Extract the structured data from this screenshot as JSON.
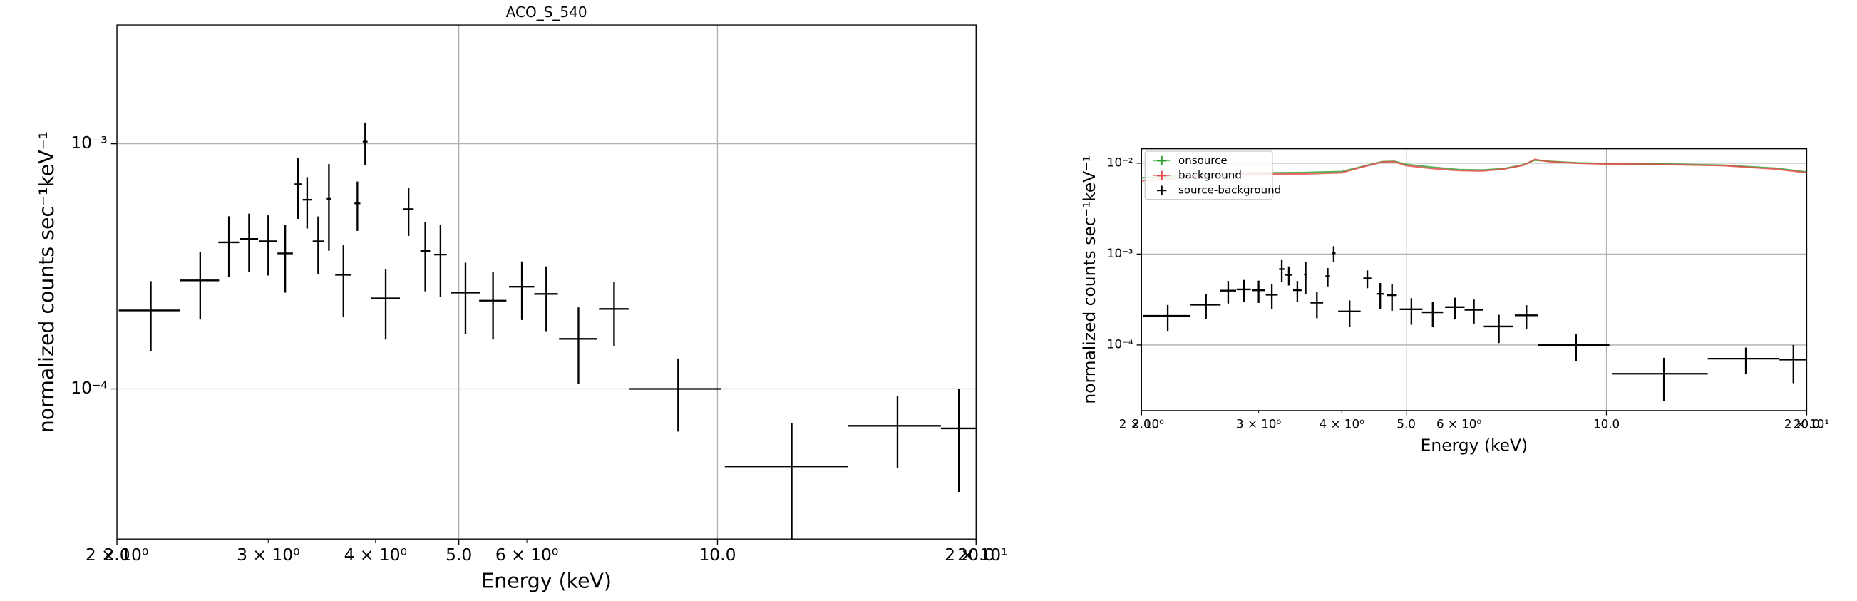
{
  "chart_data": [
    {
      "type": "errorbar",
      "title": "ACO_S_540",
      "x_label": "Energy (keV)",
      "y_label": "normalized counts sec⁻¹keV⁻¹",
      "xscale": "log",
      "yscale": "log",
      "grid": true,
      "xlim": [
        2,
        20
      ],
      "ylim": [
        2.44e-05,
        0.00305
      ],
      "xticks": [
        {
          "value": 2,
          "label": "2.0"
        },
        {
          "value": 5,
          "label": "5.0"
        },
        {
          "value": 10,
          "label": "10.0"
        },
        {
          "value": 20,
          "label": "20.0"
        }
      ],
      "xminorticks": [
        {
          "value": 2,
          "label": "2 × 10⁰"
        },
        {
          "value": 3,
          "label": "3 × 10⁰"
        },
        {
          "value": 4,
          "label": "4 × 10⁰"
        },
        {
          "value": 6,
          "label": "6 × 10⁰"
        },
        {
          "value": 20,
          "label": "2 × 10¹"
        }
      ],
      "yticks": [
        {
          "value": 0.001,
          "label": "10⁻³"
        },
        {
          "value": 0.0001,
          "label": "10⁻⁴"
        }
      ],
      "series": [
        {
          "mark": "errorbar",
          "color": "#000000",
          "x": [
            2.19,
            2.5,
            2.7,
            2.85,
            3.0,
            3.14,
            3.25,
            3.33,
            3.43,
            3.53,
            3.67,
            3.81,
            3.89,
            4.11,
            4.37,
            4.57,
            4.76,
            5.09,
            5.48,
            5.92,
            6.32,
            6.89,
            7.58,
            9.0,
            12.2,
            16.2,
            19.1
          ],
          "xerr": [
            0.18,
            0.13,
            0.075,
            0.07,
            0.07,
            0.065,
            0.03,
            0.04,
            0.05,
            0.02,
            0.08,
            0.03,
            0.025,
            0.16,
            0.06,
            0.06,
            0.08,
            0.2,
            0.2,
            0.2,
            0.2,
            0.35,
            0.3,
            1.1,
            2.0,
            2.0,
            0.9
          ],
          "values": [
            0.000209,
            0.000277,
            0.000396,
            0.000409,
            0.0004,
            0.000357,
            0.000684,
            0.000591,
            0.0004,
            0.000596,
            0.000292,
            0.000571,
            0.00102,
            0.000234,
            0.000541,
            0.000365,
            0.000353,
            0.000247,
            0.000229,
            0.000261,
            0.000244,
            0.00016,
            0.000212,
            0.0001,
            4.83e-05,
            7.07e-05,
            6.9e-05
          ],
          "yerr": [
            6.6e-05,
            8.5e-05,
            0.00011,
            0.00011,
            0.00011,
            0.00011,
            0.00019,
            0.00014,
            0.000105,
            0.00023,
            9.5e-05,
            0.00013,
            0.0002,
            7.5e-05,
            0.00012,
            0.000115,
            0.000115,
            8e-05,
            7e-05,
            7e-05,
            7.2e-05,
            5.5e-05,
            6.2e-05,
            3.3e-05,
            2.4e-05,
            2.3e-05,
            3.1e-05
          ]
        }
      ]
    },
    {
      "type": "errorbar",
      "x_label": "Energy (keV)",
      "y_label": "normalized counts sec⁻¹keV⁻¹",
      "xscale": "log",
      "yscale": "log",
      "grid": true,
      "legend": "upper left",
      "xlim": [
        2,
        20
      ],
      "ylim": [
        1.9e-05,
        0.0144
      ],
      "xticks": [
        {
          "value": 2,
          "label": "2.0"
        },
        {
          "value": 5,
          "label": "5.0"
        },
        {
          "value": 10,
          "label": "10.0"
        },
        {
          "value": 20,
          "label": "20.0"
        }
      ],
      "xminorticks": [
        {
          "value": 2,
          "label": "2 × 10⁰"
        },
        {
          "value": 3,
          "label": "3 × 10⁰"
        },
        {
          "value": 4,
          "label": "4 × 10⁰"
        },
        {
          "value": 6,
          "label": "6 × 10⁰"
        },
        {
          "value": 20,
          "label": "2 × 10¹"
        }
      ],
      "yticks": [
        {
          "value": 0.01,
          "label": "10⁻²"
        },
        {
          "value": 0.001,
          "label": "10⁻³"
        },
        {
          "value": 0.0001,
          "label": "10⁻⁴"
        }
      ],
      "series": [
        {
          "name": "onsource",
          "mark": "line",
          "color": "#2ca02c",
          "x": [
            2,
            2.3,
            2.6,
            3,
            3.5,
            4,
            4.3,
            4.6,
            4.8,
            5,
            5.5,
            6,
            6.5,
            7,
            7.5,
            7.8,
            8.2,
            9,
            10,
            12,
            15,
            18,
            20
          ],
          "values": [
            0.0069,
            0.0073,
            0.0077,
            0.0078,
            0.0079,
            0.0081,
            0.0092,
            0.0104,
            0.0105,
            0.0097,
            0.009,
            0.0085,
            0.0084,
            0.0087,
            0.0096,
            0.0108,
            0.0105,
            0.0101,
            0.0099,
            0.0098,
            0.0095,
            0.0088,
            0.008
          ]
        },
        {
          "name": "background",
          "mark": "line",
          "color": "#e8474a",
          "x": [
            2,
            2.3,
            2.6,
            3,
            3.5,
            4,
            4.3,
            4.6,
            4.8,
            5,
            5.5,
            6,
            6.5,
            7,
            7.5,
            7.8,
            8.2,
            9,
            10,
            12,
            15,
            18,
            20
          ],
          "values": [
            0.0064,
            0.0069,
            0.0074,
            0.0076,
            0.0076,
            0.00785,
            0.0091,
            0.0103,
            0.0104,
            0.0094,
            0.0087,
            0.0083,
            0.0082,
            0.0086,
            0.0095,
            0.011,
            0.0104,
            0.01,
            0.0098,
            0.0097,
            0.0094,
            0.0086,
            0.00785
          ]
        },
        {
          "name": "source-background",
          "mark": "errorbar",
          "color": "#000000",
          "x": [
            2.19,
            2.5,
            2.7,
            2.85,
            3.0,
            3.14,
            3.25,
            3.33,
            3.43,
            3.53,
            3.67,
            3.81,
            3.89,
            4.11,
            4.37,
            4.57,
            4.76,
            5.09,
            5.48,
            5.92,
            6.32,
            6.89,
            7.58,
            9.0,
            12.2,
            16.2,
            19.1
          ],
          "xerr": [
            0.18,
            0.13,
            0.075,
            0.07,
            0.07,
            0.065,
            0.03,
            0.04,
            0.05,
            0.02,
            0.08,
            0.03,
            0.025,
            0.16,
            0.06,
            0.06,
            0.08,
            0.2,
            0.2,
            0.2,
            0.2,
            0.35,
            0.3,
            1.1,
            2.0,
            2.0,
            0.9
          ],
          "values": [
            0.000209,
            0.000277,
            0.000396,
            0.000409,
            0.0004,
            0.000357,
            0.000684,
            0.000591,
            0.0004,
            0.000596,
            0.000292,
            0.000571,
            0.00102,
            0.000234,
            0.000541,
            0.000365,
            0.000353,
            0.000247,
            0.000229,
            0.000261,
            0.000244,
            0.00016,
            0.000212,
            0.0001,
            4.83e-05,
            7.07e-05,
            6.9e-05
          ],
          "yerr": [
            6.6e-05,
            8.5e-05,
            0.00011,
            0.00011,
            0.00011,
            0.00011,
            0.00019,
            0.00014,
            0.000105,
            0.00023,
            9.5e-05,
            0.00013,
            0.0002,
            7.5e-05,
            0.00012,
            0.000115,
            0.000115,
            8e-05,
            7e-05,
            7e-05,
            7.2e-05,
            5.5e-05,
            6.2e-05,
            3.3e-05,
            2.4e-05,
            2.3e-05,
            3.1e-05
          ]
        }
      ]
    }
  ]
}
